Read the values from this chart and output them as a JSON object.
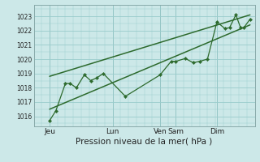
{
  "title": "",
  "xlabel": "Pression niveau de la mer( hPa )",
  "xlabel_fontsize": 7.5,
  "bg_color": "#cce8e8",
  "grid_color": "#99cccc",
  "line_color": "#2d6a2d",
  "ylim": [
    1015.3,
    1023.8
  ],
  "xlim": [
    0.0,
    7.0
  ],
  "xtick_positions": [
    0.5,
    2.5,
    4.0,
    4.5,
    5.8,
    7.0
  ],
  "xtick_labels": [
    "Jeu",
    "Lun",
    "Ven",
    "Sam",
    "Dim",
    ""
  ],
  "ytick_positions": [
    1016,
    1017,
    1018,
    1019,
    1020,
    1021,
    1022,
    1023
  ],
  "ytick_labels": [
    "1016",
    "1017",
    "1018",
    "1019",
    "1020",
    "1021",
    "1022",
    "1023"
  ],
  "line1_x": [
    0.5,
    0.7,
    1.0,
    1.15,
    1.35,
    1.6,
    1.8,
    2.0,
    2.2,
    2.9,
    4.0,
    4.35,
    4.5,
    4.8,
    5.05,
    5.25,
    5.5,
    5.8,
    6.05,
    6.2,
    6.4,
    6.55,
    6.65,
    6.85
  ],
  "line1_y": [
    1015.7,
    1016.4,
    1018.3,
    1018.3,
    1018.0,
    1018.9,
    1018.5,
    1018.7,
    1019.0,
    1017.4,
    1018.9,
    1019.85,
    1019.85,
    1020.05,
    1019.75,
    1019.85,
    1020.0,
    1022.6,
    1022.15,
    1022.2,
    1023.1,
    1022.2,
    1022.2,
    1022.8
  ],
  "line2_x": [
    0.5,
    6.85
  ],
  "line2_y": [
    1016.5,
    1022.4
  ],
  "line3_x": [
    0.5,
    6.85
  ],
  "line3_y": [
    1018.8,
    1023.1
  ],
  "vline_x": [
    0.5,
    2.5,
    4.0,
    4.5,
    5.8,
    7.0
  ],
  "vline_color": "#88aaaa",
  "ytick_fontsize": 5.5,
  "xtick_fontsize": 6.5
}
